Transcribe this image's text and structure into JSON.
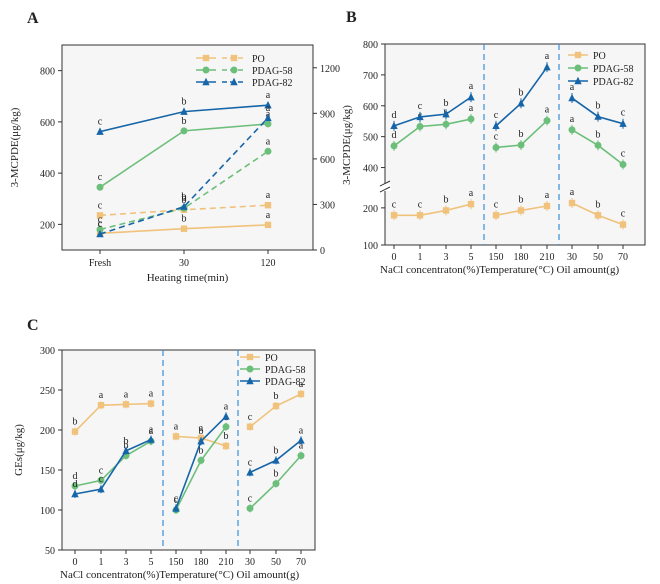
{
  "colors": {
    "PO": "#f0c27b",
    "PDAG-58": "#6cbf7a",
    "PDAG-82": "#1565a8",
    "divider": "#3a8fd8"
  },
  "chart_data": [
    {
      "panel": "A",
      "type": "line",
      "ylabel": "3-MCPDE(μg/kg)",
      "xlabel": "Heating time(min)",
      "categories": [
        "Fresh",
        "30",
        "120"
      ],
      "left_yticks": [
        "200",
        "400",
        "600",
        "800"
      ],
      "left_ylim": [
        100,
        900
      ],
      "right_yticks": [
        "0",
        "300",
        "600",
        "900",
        "1200"
      ],
      "right_ylim": [
        0,
        1350
      ],
      "legend": [
        "PO",
        "PDAG-58",
        "PDAG-82"
      ],
      "series": [
        {
          "name": "PO",
          "axis": "left",
          "dashed": false,
          "values": [
            165,
            183,
            198
          ],
          "letters": [
            "c",
            "b",
            "a"
          ]
        },
        {
          "name": "PDAG-58",
          "axis": "left",
          "dashed": false,
          "values": [
            345,
            565,
            592
          ],
          "letters": [
            "c",
            "b",
            "a"
          ]
        },
        {
          "name": "PDAG-82",
          "axis": "left",
          "dashed": false,
          "values": [
            562,
            640,
            665
          ],
          "letters": [
            "c",
            "b",
            "a"
          ]
        },
        {
          "name": "PO",
          "axis": "right",
          "dashed": true,
          "values": [
            228,
            265,
            295
          ],
          "letters": [
            "c",
            "b",
            "a"
          ]
        },
        {
          "name": "PDAG-58",
          "axis": "right",
          "dashed": true,
          "values": [
            135,
            275,
            650
          ],
          "letters": [
            "c",
            "b",
            "a"
          ]
        },
        {
          "name": "PDAG-82",
          "axis": "right",
          "dashed": true,
          "values": [
            105,
            285,
            870
          ],
          "letters": [
            "c",
            "b",
            "a"
          ]
        }
      ]
    },
    {
      "panel": "B",
      "type": "line",
      "ylabel": "3-MCPDE(μg/kg)",
      "xlabel": "NaCl concentraton(%)Temperature(°C) Oil amount(g)",
      "yticks_upper": [
        "400",
        "500",
        "600",
        "700",
        "800"
      ],
      "yticks_lower": [
        "100",
        "200"
      ],
      "legend": [
        "PO",
        "PDAG-58",
        "PDAG-82"
      ],
      "groups": [
        {
          "categories": [
            "0",
            "1",
            "3",
            "5"
          ],
          "series": [
            {
              "name": "PO",
              "values": [
                180,
                180,
                193,
                210
              ],
              "letters": [
                "c",
                "c",
                "b",
                "a"
              ]
            },
            {
              "name": "PDAG-58",
              "values": [
                470,
                533,
                540,
                557
              ],
              "letters": [
                "d",
                "c",
                "b",
                "a"
              ]
            },
            {
              "name": "PDAG-82",
              "values": [
                535,
                564,
                573,
                628
              ],
              "letters": [
                "d",
                "c",
                "b",
                "a"
              ]
            }
          ]
        },
        {
          "categories": [
            "150",
            "180",
            "210"
          ],
          "series": [
            {
              "name": "PO",
              "values": [
                180,
                193,
                205
              ],
              "letters": [
                "c",
                "b",
                "a"
              ]
            },
            {
              "name": "PDAG-58",
              "values": [
                465,
                473,
                552
              ],
              "letters": [
                "c",
                "b",
                "a"
              ]
            },
            {
              "name": "PDAG-82",
              "values": [
                535,
                608,
                725
              ],
              "letters": [
                "c",
                "b",
                "a"
              ]
            }
          ]
        },
        {
          "categories": [
            "30",
            "50",
            "70"
          ],
          "series": [
            {
              "name": "PO",
              "values": [
                213,
                180,
                155
              ],
              "letters": [
                "a",
                "b",
                "c"
              ]
            },
            {
              "name": "PDAG-58",
              "values": [
                522,
                472,
                410
              ],
              "letters": [
                "a",
                "b",
                "c"
              ]
            },
            {
              "name": "PDAG-82",
              "values": [
                625,
                565,
                542
              ],
              "letters": [
                "a",
                "b",
                "c"
              ]
            }
          ]
        }
      ]
    },
    {
      "panel": "C",
      "type": "line",
      "ylabel": "GEs(μg/kg)",
      "xlabel": "NaCl concentraton(%)Temperature(°C) Oil amount(g)",
      "yticks": [
        "50",
        "100",
        "150",
        "200",
        "250",
        "300"
      ],
      "ylim": [
        50,
        300
      ],
      "legend": [
        "PO",
        "PDAG-58",
        "PDAG-82"
      ],
      "groups": [
        {
          "categories": [
            "0",
            "1",
            "3",
            "5"
          ],
          "series": [
            {
              "name": "PO",
              "values": [
                198,
                231,
                232,
                233
              ],
              "letters": [
                "b",
                "a",
                "a",
                "a"
              ]
            },
            {
              "name": "PDAG-58",
              "values": [
                130,
                137,
                168,
                186
              ],
              "letters": [
                "d",
                "c",
                "b",
                "a"
              ]
            },
            {
              "name": "PDAG-82",
              "values": [
                120,
                126,
                174,
                188
              ],
              "letters": [
                "d",
                "c",
                "b",
                "a"
              ]
            }
          ]
        },
        {
          "categories": [
            "150",
            "180",
            "210"
          ],
          "series": [
            {
              "name": "PO",
              "values": [
                192,
                190,
                180
              ],
              "letters": [
                "a",
                "a",
                "b"
              ]
            },
            {
              "name": "PDAG-58",
              "values": [
                100,
                162,
                204
              ],
              "letters": [
                "c",
                "b",
                "a"
              ]
            },
            {
              "name": "PDAG-82",
              "values": [
                102,
                186,
                217
              ],
              "letters": [
                "c",
                "b",
                "a"
              ]
            }
          ]
        },
        {
          "categories": [
            "30",
            "50",
            "70"
          ],
          "series": [
            {
              "name": "PO",
              "values": [
                204,
                230,
                245
              ],
              "letters": [
                "c",
                "b",
                "a"
              ]
            },
            {
              "name": "PDAG-58",
              "values": [
                102,
                133,
                168
              ],
              "letters": [
                "c",
                "b",
                "a"
              ]
            },
            {
              "name": "PDAG-82",
              "values": [
                147,
                162,
                187
              ],
              "letters": [
                "c",
                "b",
                "a"
              ]
            }
          ]
        }
      ]
    }
  ]
}
